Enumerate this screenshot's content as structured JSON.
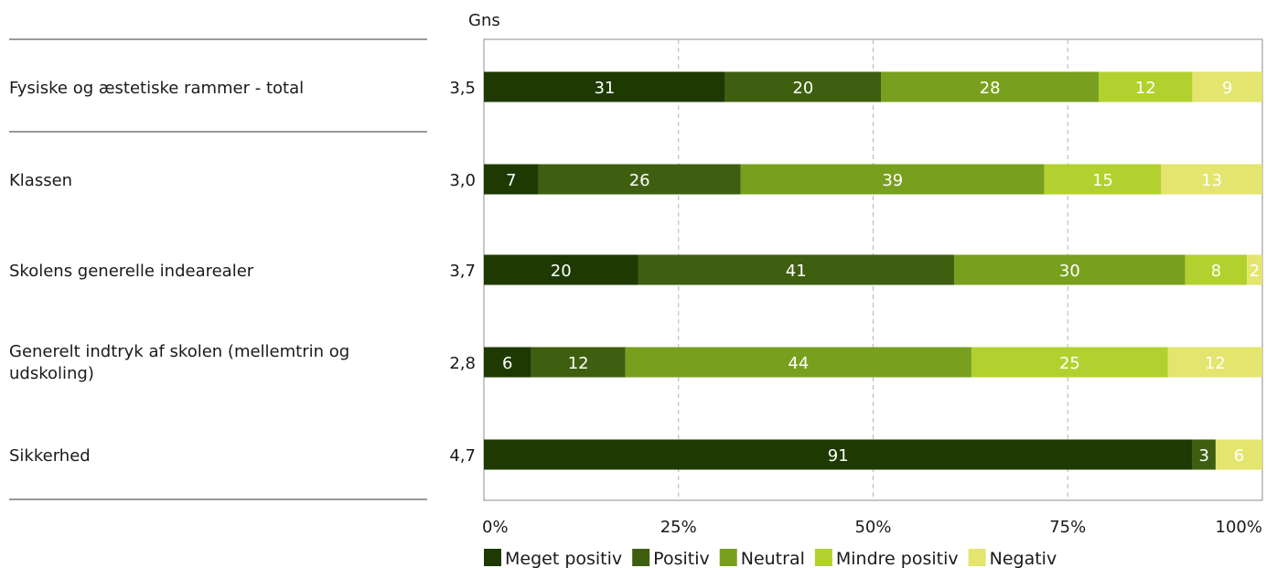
{
  "chart_data": {
    "type": "bar",
    "orientation": "horizontal",
    "stacked": true,
    "avg_header": "Gns",
    "categories": [
      "Fysiske og æstetiske rammer - total",
      "Klassen",
      "Skolens generelle indearealer",
      "Generelt indtryk af skolen (mellemtrin og udskoling)",
      "Sikkerhed"
    ],
    "averages": [
      "3,5",
      "3,0",
      "3,7",
      "2,8",
      "4,7"
    ],
    "series": [
      {
        "name": "Meget positiv",
        "color": "#1e3a02",
        "label_color": "#ffffff",
        "values": [
          31,
          7,
          20,
          6,
          91
        ]
      },
      {
        "name": "Positiv",
        "color": "#3f5f10",
        "label_color": "#ffffff",
        "values": [
          20,
          26,
          41,
          12,
          3
        ]
      },
      {
        "name": "Neutral",
        "color": "#78a01e",
        "label_color": "#ffffff",
        "values": [
          28,
          39,
          30,
          44,
          0
        ]
      },
      {
        "name": "Mindre positiv",
        "color": "#b2d12e",
        "label_color": "#ffffff",
        "values": [
          12,
          15,
          8,
          25,
          0
        ]
      },
      {
        "name": "Negativ",
        "color": "#e3e56e",
        "label_color": "#ffffff",
        "values": [
          9,
          13,
          2,
          12,
          6
        ]
      }
    ],
    "xlim": [
      0,
      100
    ],
    "xticks": [
      "0%",
      "25%",
      "50%",
      "75%",
      "100%"
    ],
    "grid": true,
    "legend_position": "bottom"
  }
}
